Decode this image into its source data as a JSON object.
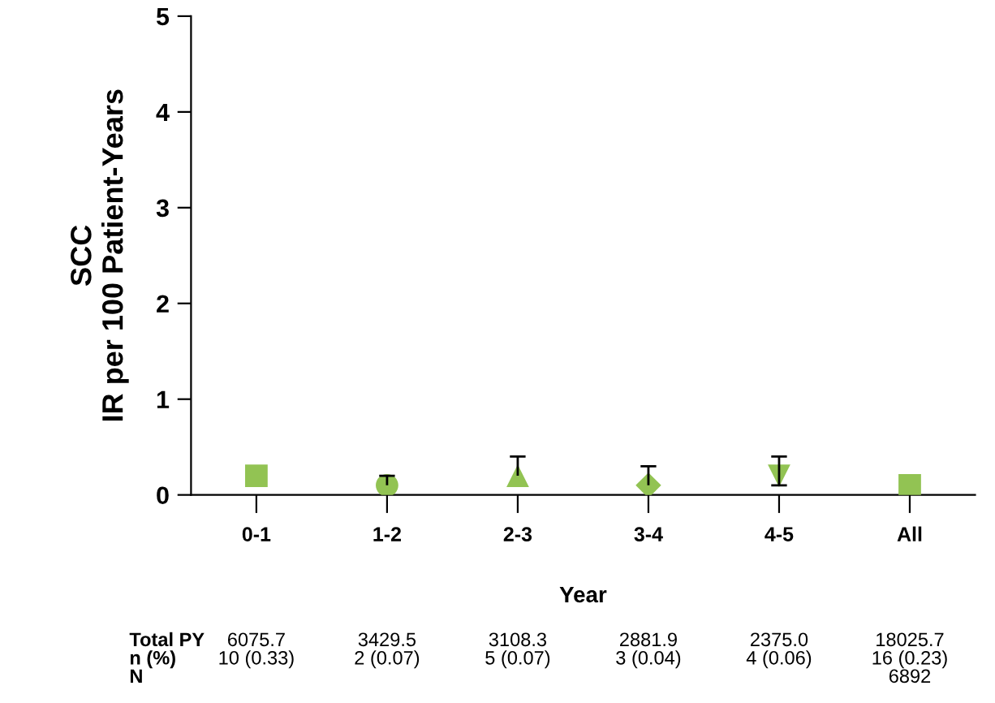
{
  "chart_data": {
    "type": "scatter",
    "categories": [
      "0-1",
      "1-2",
      "2-3",
      "3-4",
      "4-5",
      "All"
    ],
    "series": [
      {
        "x": [
          "0-1"
        ],
        "values": [
          0.2
        ],
        "marker": "square",
        "color": "#92c353"
      },
      {
        "x": [
          "1-2"
        ],
        "values": [
          0.1
        ],
        "errors": [
          [
            0.1,
            0.2
          ]
        ],
        "marker": "circle",
        "color": "#92c353"
      },
      {
        "x": [
          "2-3"
        ],
        "values": [
          0.2
        ],
        "errors": [
          [
            0.2,
            0.4
          ]
        ],
        "marker": "triangle",
        "color": "#92c353"
      },
      {
        "x": [
          "3-4"
        ],
        "values": [
          0.1
        ],
        "errors": [
          [
            0.1,
            0.3
          ]
        ],
        "marker": "diamond",
        "color": "#92c353"
      },
      {
        "x": [
          "4-5"
        ],
        "values": [
          0.2
        ],
        "errors": [
          [
            0.1,
            0.4
          ]
        ],
        "marker": "triangle_down",
        "color": "#92c353"
      },
      {
        "x": [
          "All"
        ],
        "values": [
          0.1
        ],
        "marker": "square",
        "color": "#92c353"
      }
    ],
    "xlabel": "Year",
    "ylabel": "SCC\nIR per 100 Patient-Years",
    "ylim": [
      0,
      5
    ],
    "yticks": [
      0,
      1,
      2,
      3,
      4,
      5
    ],
    "grid": false,
    "legend": false,
    "annotations": [
      "Total PY",
      "6075.7",
      "3429.5",
      "3108.3",
      "2881.9",
      "2375.0",
      "18025.7",
      "n (%)",
      "10 (0.33)",
      "2 (0.07)",
      "5 (0.07)",
      "3 (0.04)",
      "4 (0.06)",
      "16 (0.23)",
      "N",
      "6892"
    ]
  }
}
